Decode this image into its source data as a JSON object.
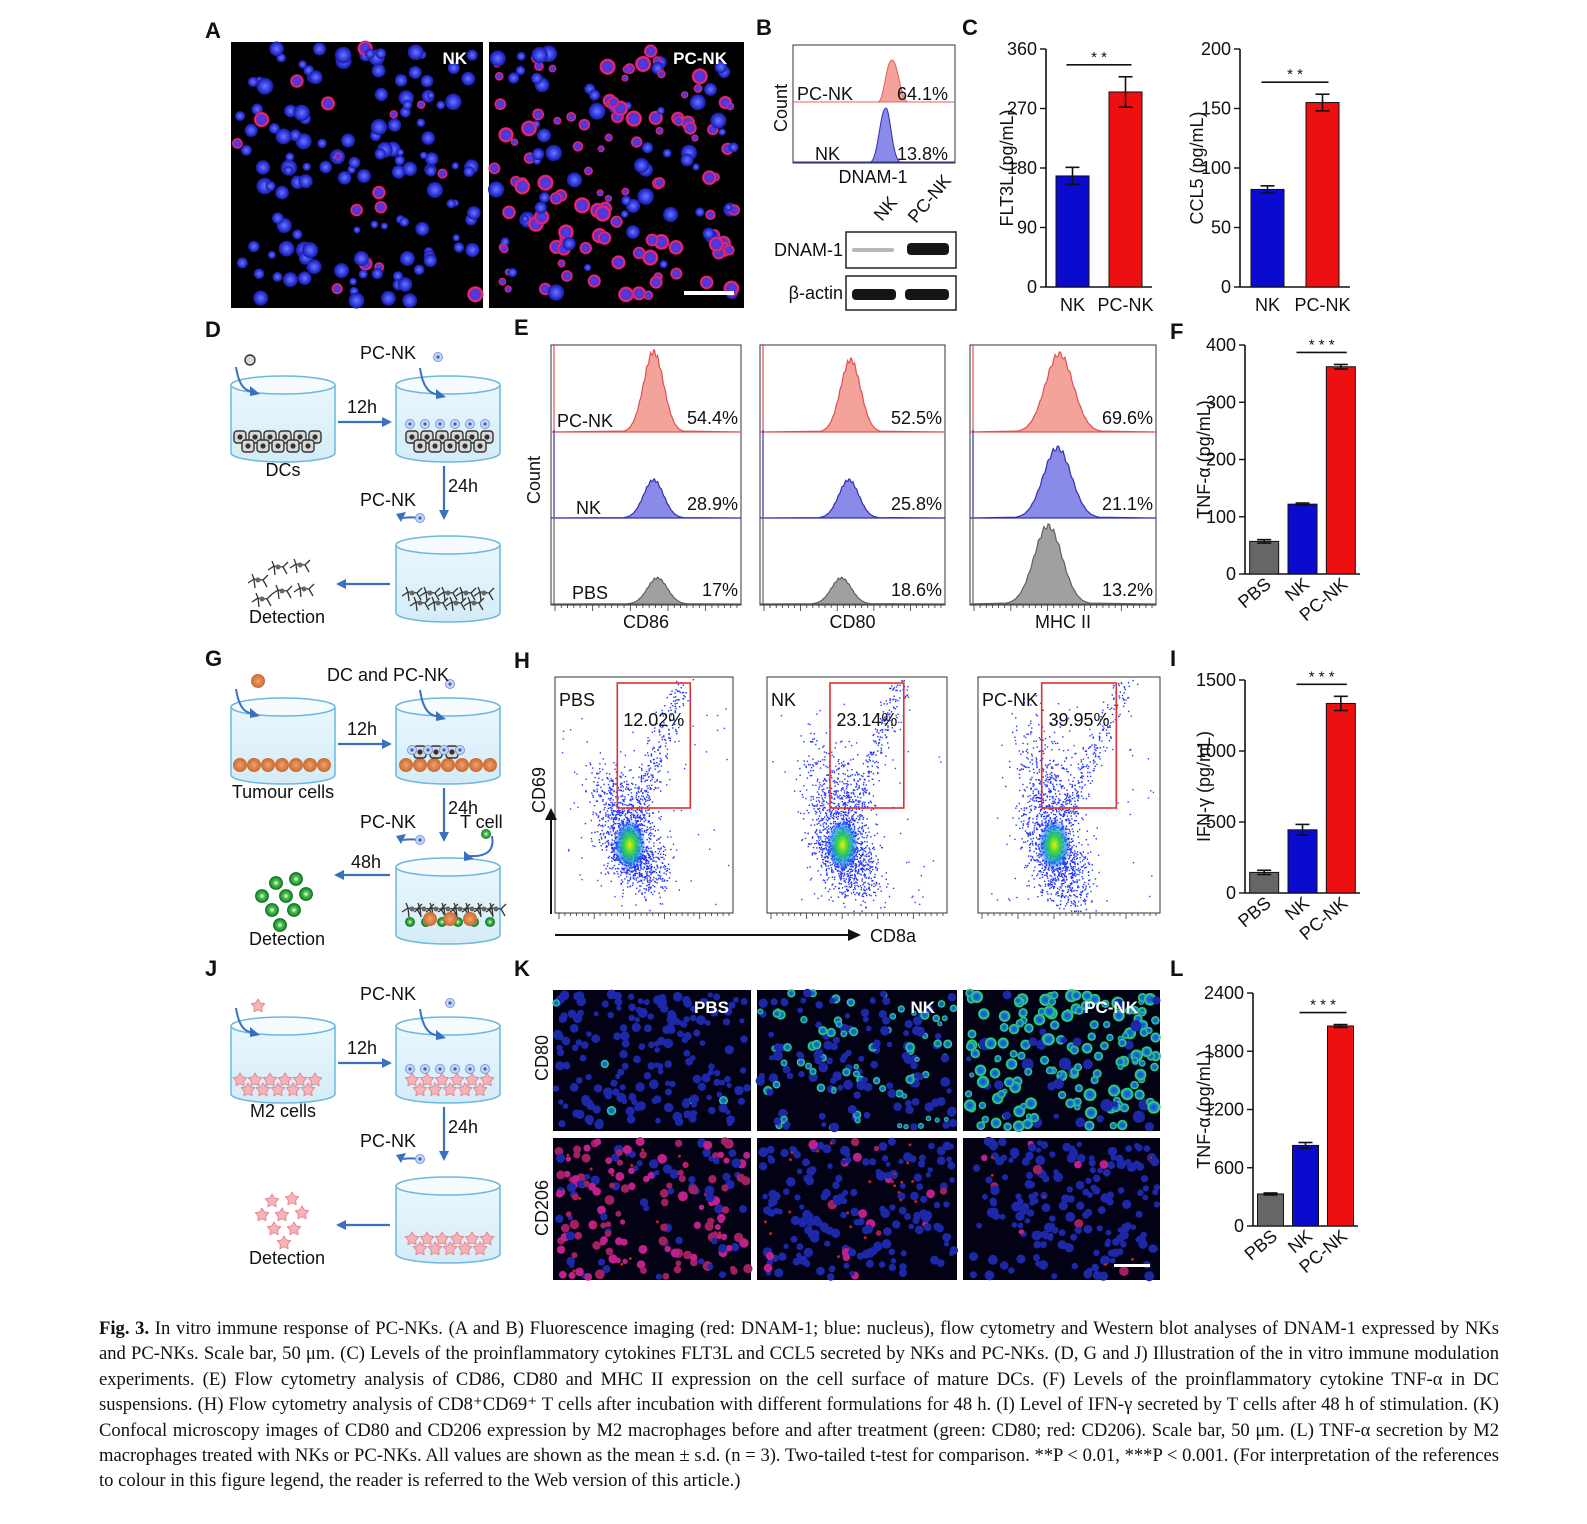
{
  "panel_letters": [
    "A",
    "B",
    "C",
    "D",
    "E",
    "F",
    "G",
    "H",
    "I",
    "J",
    "K",
    "L"
  ],
  "panel_a": {
    "labels": [
      "NK",
      "PC-NK"
    ]
  },
  "panel_b": {
    "flow_rows": [
      {
        "label": "PC-NK",
        "percent": "64.1%"
      },
      {
        "label": "NK",
        "percent": "13.8%"
      }
    ],
    "ylabel": "Count",
    "xlabel": "DNAM-1",
    "wb_lanes": [
      "NK",
      "PC-NK"
    ],
    "wb_rows": [
      "DNAM-1",
      "β-actin"
    ]
  },
  "panel_d": {
    "top_label": "PC-NK",
    "step1": "12h",
    "cells": "DCs",
    "step2": "24h",
    "mid_label": "PC-NK",
    "end": "Detection"
  },
  "panel_e": {
    "ylabel": "Count",
    "rows": [
      "PC-NK",
      "NK",
      "PBS"
    ],
    "markers": [
      {
        "name": "CD86",
        "values": [
          "54.4%",
          "28.9%",
          "17%"
        ]
      },
      {
        "name": "CD80",
        "values": [
          "52.5%",
          "25.8%",
          "18.6%"
        ]
      },
      {
        "name": "MHC II",
        "values": [
          "69.6%",
          "21.1%",
          "13.2%"
        ]
      }
    ]
  },
  "panel_g": {
    "top_label": "DC and PC-NK",
    "step1": "12h",
    "cells": "Tumour cells",
    "step2": "24h",
    "mid_label": "PC-NK",
    "tcell": "T cell",
    "step3": "48h",
    "end": "Detection"
  },
  "panel_h": {
    "plots": [
      {
        "name": "PBS",
        "gate": "12.02%"
      },
      {
        "name": "NK",
        "gate": "23.14%"
      },
      {
        "name": "PC-NK",
        "gate": "39.95%"
      }
    ],
    "ylabel": "CD69",
    "xlabel": "CD8a"
  },
  "panel_j": {
    "top_label": "PC-NK",
    "step1": "12h",
    "cells": "M2 cells",
    "step2": "24h",
    "mid_label": "PC-NK",
    "end": "Detection"
  },
  "panel_k": {
    "columns": [
      "PBS",
      "NK",
      "PC-NK"
    ],
    "rows": [
      "CD80",
      "CD206"
    ]
  },
  "significance": {
    "double": "* *",
    "triple": "* * *"
  },
  "chart_data": [
    {
      "panel": "C-left",
      "type": "bar",
      "categories": [
        "NK",
        "PC-NK"
      ],
      "values": [
        168,
        295
      ],
      "errors": [
        13,
        23
      ],
      "ylabel": "FLT3L (pg/mL)",
      "ylim": [
        0,
        360
      ],
      "yticks": [
        0,
        90,
        180,
        270,
        360
      ],
      "colors": [
        "#0b0bd0",
        "#ee1010"
      ],
      "significance": "* *"
    },
    {
      "panel": "C-right",
      "type": "bar",
      "categories": [
        "NK",
        "PC-NK"
      ],
      "values": [
        82,
        155
      ],
      "errors": [
        3,
        7
      ],
      "ylabel": "CCL5 (pg/mL)",
      "ylim": [
        0,
        200
      ],
      "yticks": [
        0,
        50,
        100,
        150,
        200
      ],
      "colors": [
        "#0b0bd0",
        "#ee1010"
      ],
      "significance": "* *"
    },
    {
      "panel": "F",
      "type": "bar",
      "categories": [
        "PBS",
        "NK",
        "PC-NK"
      ],
      "values": [
        57,
        122,
        362
      ],
      "errors": [
        3,
        2,
        4
      ],
      "ylabel": "TNF-α (pg/mL)",
      "ylim": [
        0,
        400
      ],
      "yticks": [
        0,
        100,
        200,
        300,
        400
      ],
      "colors": [
        "#666666",
        "#0b0bd0",
        "#ee1010"
      ],
      "significance": "* * *"
    },
    {
      "panel": "I",
      "type": "bar",
      "categories": [
        "PBS",
        "NK",
        "PC-NK"
      ],
      "values": [
        145,
        445,
        1335
      ],
      "errors": [
        15,
        38,
        50
      ],
      "ylabel": "IFN-γ (pg/mL)",
      "ylim": [
        0,
        1500
      ],
      "yticks": [
        0,
        500,
        1000,
        1500
      ],
      "colors": [
        "#666666",
        "#0b0bd0",
        "#ee1010"
      ],
      "significance": "* * *"
    },
    {
      "panel": "L",
      "type": "bar",
      "categories": [
        "PBS",
        "NK",
        "PC-NK"
      ],
      "values": [
        330,
        830,
        2060
      ],
      "errors": [
        10,
        30,
        15
      ],
      "ylabel": "TNF-α (pg/mL)",
      "ylim": [
        0,
        2400
      ],
      "yticks": [
        0,
        600,
        1200,
        1800,
        2400
      ],
      "colors": [
        "#666666",
        "#0b0bd0",
        "#ee1010"
      ],
      "significance": "* * *"
    }
  ],
  "caption": {
    "fig_label": "Fig. 3.",
    "text": "In vitro immune response of PC-NKs. (A and B) Fluorescence imaging (red: DNAM-1; blue: nucleus), flow cytometry and Western blot analyses of DNAM-1 expressed by NKs and PC-NKs. Scale bar, 50 μm. (C) Levels of the proinflammatory cytokines FLT3L and CCL5 secreted by NKs and PC-NKs. (D, G and J) Illustration of the in vitro immune modulation experiments. (E) Flow cytometry analysis of CD86, CD80 and MHC II expression on the cell surface of mature DCs. (F) Levels of the proinflammatory cytokine TNF-α in DC suspensions. (H) Flow cytometry analysis of CD8⁺CD69⁺ T cells after incubation with different formulations for 48 h. (I) Level of IFN-γ secreted by T cells after 48 h of stimulation. (K) Confocal microscopy images of CD80 and CD206 expression by M2 macrophages before and after treatment (green: CD80; red: CD206). Scale bar, 50 μm. (L) TNF-α secretion by M2 macrophages treated with NKs or PC-NKs. All values are shown as the mean ± s.d. (n = 3). Two-tailed t-test for comparison. **P < 0.01, ***P < 0.001. (For interpretation of the references to colour in this figure legend, the reader is referred to the Web version of this article.)"
  }
}
